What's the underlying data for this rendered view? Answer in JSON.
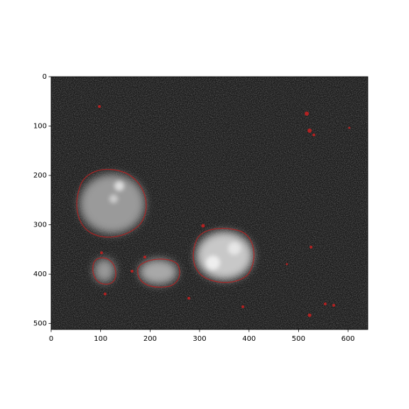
{
  "chart_data": {
    "type": "image",
    "xlim": [
      0,
      640
    ],
    "ylim": [
      512,
      0
    ],
    "xticks": [
      0,
      100,
      200,
      300,
      400,
      500,
      600
    ],
    "yticks": [
      0,
      100,
      200,
      300,
      400,
      500
    ]
  }
}
